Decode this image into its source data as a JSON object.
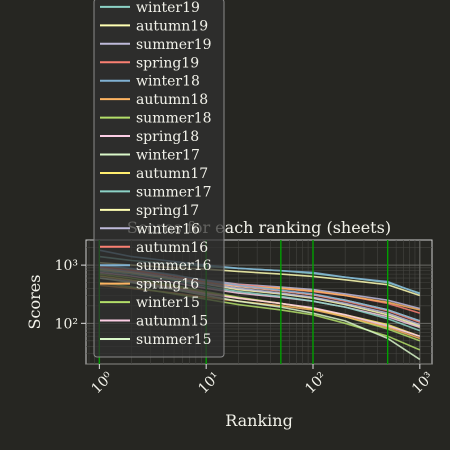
{
  "chart_data": {
    "type": "line",
    "title": "Scores for each ranking (sheets)",
    "xlabel": "Ranking",
    "ylabel": "Scores",
    "xscale": "log",
    "yscale": "log",
    "xlim": [
      0.75,
      1300
    ],
    "ylim": [
      20,
      2700
    ],
    "grid": "on",
    "legend_position": "upper-left",
    "x_ticks": [
      {
        "value": 1,
        "label": "10⁰"
      },
      {
        "value": 10,
        "label": "10¹"
      },
      {
        "value": 100,
        "label": "10²"
      },
      {
        "value": 1000,
        "label": "10³"
      }
    ],
    "y_ticks": [
      {
        "value": 100,
        "label": "10²"
      },
      {
        "value": 1000,
        "label": "10³"
      }
    ],
    "reference_lines_x": [
      1,
      10,
      50,
      100,
      500
    ],
    "reference_line_color": "#00a000",
    "x": [
      1,
      2,
      5,
      10,
      20,
      50,
      100,
      200,
      500,
      1000
    ],
    "series": [
      {
        "name": "winter19",
        "color": "#8dd3c7",
        "values": [
          1400,
          1200,
          1050,
          950,
          880,
          800,
          720,
          620,
          500,
          330
        ]
      },
      {
        "name": "autumn19",
        "color": "#ffffb3",
        "values": [
          1100,
          1000,
          900,
          850,
          780,
          700,
          640,
          560,
          460,
          300
        ]
      },
      {
        "name": "summer19",
        "color": "#bebada",
        "values": [
          900,
          800,
          650,
          550,
          470,
          420,
          380,
          320,
          250,
          180
        ]
      },
      {
        "name": "spring19",
        "color": "#fb8072",
        "values": [
          800,
          720,
          600,
          520,
          460,
          400,
          350,
          300,
          220,
          150
        ]
      },
      {
        "name": "winter18",
        "color": "#80b1d3",
        "values": [
          1800,
          1400,
          1150,
          1000,
          880,
          800,
          750,
          620,
          520,
          320
        ]
      },
      {
        "name": "autumn18",
        "color": "#fdb462",
        "values": [
          900,
          780,
          600,
          500,
          430,
          400,
          360,
          300,
          230,
          170
        ]
      },
      {
        "name": "summer18",
        "color": "#b3de69",
        "values": [
          700,
          600,
          450,
          350,
          280,
          220,
          180,
          130,
          80,
          50
        ]
      },
      {
        "name": "spring18",
        "color": "#fccde5",
        "values": [
          750,
          650,
          500,
          400,
          330,
          280,
          240,
          190,
          130,
          85
        ]
      },
      {
        "name": "winter17",
        "color": "#d9f7c9",
        "values": [
          1000,
          850,
          650,
          520,
          430,
          360,
          310,
          250,
          170,
          110
        ]
      },
      {
        "name": "autumn17",
        "color": "#ffed6f",
        "values": [
          650,
          550,
          420,
          330,
          270,
          220,
          180,
          140,
          95,
          60
        ]
      },
      {
        "name": "summer17",
        "color": "#8dd3c7",
        "values": [
          800,
          700,
          550,
          430,
          350,
          290,
          240,
          190,
          120,
          75
        ]
      },
      {
        "name": "spring17",
        "color": "#ffffb3",
        "values": [
          850,
          750,
          580,
          470,
          380,
          320,
          270,
          210,
          140,
          90
        ]
      },
      {
        "name": "winter16",
        "color": "#bebada",
        "values": [
          900,
          780,
          600,
          480,
          400,
          330,
          280,
          220,
          150,
          95
        ]
      },
      {
        "name": "autumn16",
        "color": "#fb8072",
        "values": [
          950,
          820,
          650,
          520,
          440,
          360,
          310,
          240,
          165,
          105
        ]
      },
      {
        "name": "summer16",
        "color": "#80b1d3",
        "values": [
          1000,
          870,
          680,
          540,
          450,
          370,
          320,
          250,
          170,
          110
        ]
      },
      {
        "name": "spring16",
        "color": "#fdb462",
        "values": [
          450,
          400,
          330,
          280,
          240,
          200,
          170,
          130,
          85,
          55
        ]
      },
      {
        "name": "winter15",
        "color": "#b3de69",
        "values": [
          500,
          420,
          320,
          260,
          210,
          170,
          140,
          100,
          60,
          35
        ]
      },
      {
        "name": "autumn15",
        "color": "#fccde5",
        "values": [
          600,
          520,
          400,
          320,
          270,
          220,
          185,
          140,
          90,
          60
        ]
      },
      {
        "name": "summer15",
        "color": "#d9f7c9",
        "values": [
          600,
          500,
          380,
          300,
          240,
          190,
          150,
          110,
          55,
          24
        ]
      }
    ]
  }
}
